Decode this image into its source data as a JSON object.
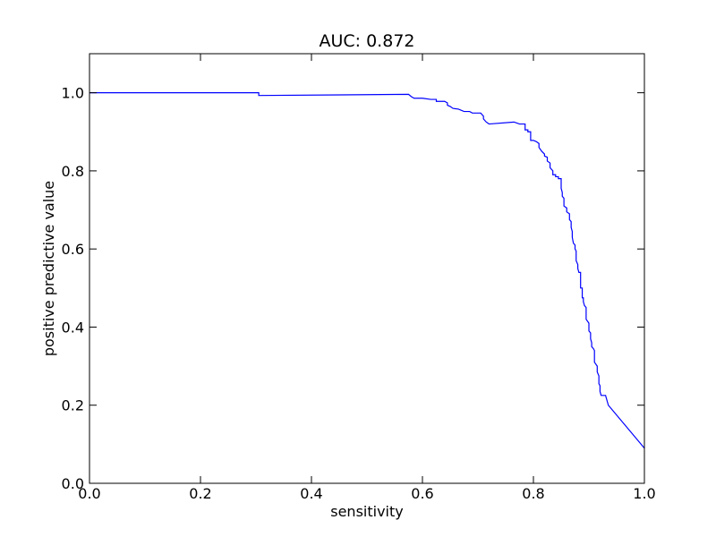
{
  "chart_data": {
    "type": "line",
    "title": "AUC: 0.872",
    "xlabel": "sensitivity",
    "ylabel": "positive predictive value",
    "xlim": [
      0.0,
      1.0
    ],
    "ylim": [
      0.0,
      1.1
    ],
    "grid": false,
    "legend": "none",
    "x_ticks": [
      0.0,
      0.2,
      0.4,
      0.6,
      0.8,
      1.0
    ],
    "x_tick_labels": [
      "0.0",
      "0.2",
      "0.4",
      "0.6",
      "0.8",
      "1.0"
    ],
    "y_ticks": [
      0.0,
      0.2,
      0.4,
      0.6,
      0.8,
      1.0
    ],
    "y_tick_labels": [
      "0.0",
      "0.2",
      "0.4",
      "0.6",
      "0.8",
      "1.0"
    ],
    "series": [
      {
        "color": "#0000ff",
        "x": [
          0.0,
          0.005,
          0.305,
          0.305,
          0.575,
          0.58,
          0.585,
          0.6,
          0.615,
          0.625,
          0.625,
          0.64,
          0.645,
          0.645,
          0.65,
          0.655,
          0.665,
          0.675,
          0.685,
          0.69,
          0.705,
          0.71,
          0.71,
          0.715,
          0.72,
          0.765,
          0.775,
          0.785,
          0.785,
          0.79,
          0.79,
          0.795,
          0.795,
          0.8,
          0.805,
          0.81,
          0.81,
          0.815,
          0.82,
          0.82,
          0.825,
          0.825,
          0.83,
          0.83,
          0.835,
          0.835,
          0.84,
          0.84,
          0.845,
          0.845,
          0.845,
          0.85,
          0.85,
          0.85,
          0.852,
          0.852,
          0.855,
          0.855,
          0.86,
          0.86,
          0.865,
          0.865,
          0.868,
          0.868,
          0.87,
          0.87,
          0.872,
          0.875,
          0.875,
          0.877,
          0.877,
          0.88,
          0.88,
          0.882,
          0.885,
          0.885,
          0.888,
          0.888,
          0.89,
          0.89,
          0.892,
          0.895,
          0.895,
          0.9,
          0.9,
          0.903,
          0.903,
          0.905,
          0.905,
          0.908,
          0.91,
          0.91,
          0.915,
          0.915,
          0.918,
          0.918,
          0.92,
          0.92,
          0.922,
          0.93,
          0.935,
          1.0
        ],
        "y": [
          1.0,
          1.0,
          1.0,
          0.993,
          0.996,
          0.99,
          0.986,
          0.986,
          0.983,
          0.983,
          0.978,
          0.978,
          0.974,
          0.968,
          0.965,
          0.96,
          0.958,
          0.952,
          0.952,
          0.948,
          0.948,
          0.94,
          0.933,
          0.925,
          0.92,
          0.925,
          0.92,
          0.92,
          0.905,
          0.905,
          0.9,
          0.9,
          0.878,
          0.878,
          0.875,
          0.87,
          0.86,
          0.85,
          0.843,
          0.838,
          0.835,
          0.825,
          0.82,
          0.808,
          0.8,
          0.79,
          0.79,
          0.785,
          0.785,
          0.78,
          0.78,
          0.78,
          0.765,
          0.755,
          0.745,
          0.735,
          0.73,
          0.71,
          0.705,
          0.695,
          0.69,
          0.675,
          0.67,
          0.655,
          0.645,
          0.63,
          0.615,
          0.61,
          0.6,
          0.595,
          0.57,
          0.56,
          0.55,
          0.54,
          0.54,
          0.5,
          0.5,
          0.475,
          0.475,
          0.465,
          0.455,
          0.45,
          0.42,
          0.41,
          0.39,
          0.385,
          0.37,
          0.36,
          0.35,
          0.345,
          0.34,
          0.31,
          0.3,
          0.285,
          0.275,
          0.255,
          0.25,
          0.235,
          0.225,
          0.225,
          0.2,
          0.09
        ]
      }
    ]
  }
}
